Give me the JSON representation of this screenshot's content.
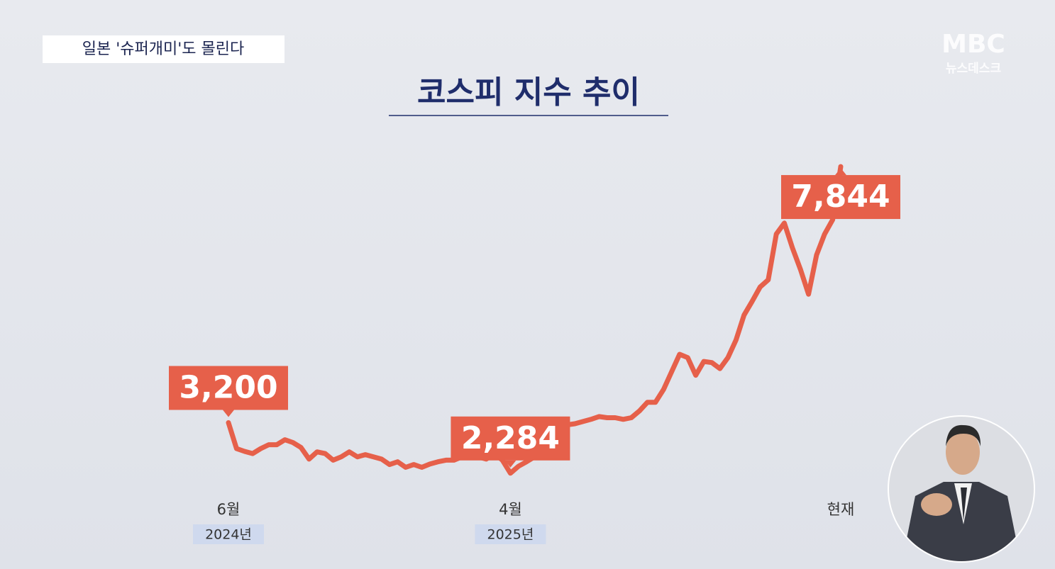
{
  "headline": "일본 '슈퍼개미'도 몰린다",
  "logo": {
    "brand": "MBC",
    "program": "뉴스데스크"
  },
  "chart_data": {
    "type": "line",
    "title": "코스피 지수 추이",
    "categories": [
      "6월",
      null,
      null,
      null,
      null,
      null,
      null,
      null,
      null,
      null,
      null,
      null,
      null,
      null,
      null,
      null,
      null,
      null,
      null,
      null,
      null,
      null,
      null,
      null,
      null,
      null,
      null,
      null,
      null,
      null,
      null,
      null,
      null,
      null,
      null,
      "4월",
      null,
      null,
      null,
      null,
      null,
      null,
      null,
      null,
      null,
      null,
      null,
      null,
      null,
      null,
      null,
      null,
      null,
      null,
      null,
      null,
      null,
      null,
      null,
      null,
      null,
      null,
      null,
      null,
      null,
      null,
      null,
      null,
      null,
      null,
      null,
      null,
      null,
      null,
      null,
      null,
      "현재"
    ],
    "category_years": [
      "2024년",
      null,
      null,
      null,
      null,
      null,
      null,
      null,
      null,
      null,
      null,
      null,
      null,
      null,
      null,
      null,
      null,
      null,
      null,
      null,
      null,
      null,
      null,
      null,
      null,
      null,
      null,
      null,
      null,
      null,
      null,
      null,
      null,
      null,
      null,
      "2025년",
      null,
      null,
      null,
      null,
      null,
      null,
      null,
      null,
      null,
      null,
      null,
      null,
      null,
      null,
      null,
      null,
      null,
      null,
      null,
      null,
      null,
      null,
      null,
      null,
      null,
      null,
      null,
      null,
      null,
      null,
      null,
      null,
      null,
      null,
      null,
      null,
      null,
      null,
      null,
      null,
      null
    ],
    "series": [
      {
        "name": "코스피",
        "color": "#e6604a",
        "values": [
          3200,
          2730,
          2680,
          2640,
          2730,
          2800,
          2800,
          2890,
          2840,
          2750,
          2540,
          2670,
          2640,
          2520,
          2580,
          2670,
          2580,
          2620,
          2580,
          2540,
          2440,
          2490,
          2390,
          2440,
          2390,
          2450,
          2490,
          2520,
          2520,
          2580,
          2670,
          2580,
          2540,
          2640,
          2520,
          2284,
          2410,
          2490,
          2580,
          2640,
          2700,
          2840,
          3160,
          3180,
          3220,
          3260,
          3310,
          3290,
          3290,
          3260,
          3290,
          3410,
          3570,
          3570,
          3800,
          4120,
          4440,
          4380,
          4060,
          4310,
          4290,
          4180,
          4380,
          4700,
          5150,
          5400,
          5660,
          5790,
          6620,
          6820,
          6370,
          5980,
          5530,
          6240,
          6620,
          6880,
          7844
        ],
        "value_labels": [
          "3,200",
          null,
          null,
          null,
          null,
          null,
          null,
          null,
          null,
          null,
          null,
          null,
          null,
          null,
          null,
          null,
          null,
          null,
          null,
          null,
          null,
          null,
          null,
          null,
          null,
          null,
          null,
          null,
          null,
          null,
          null,
          null,
          null,
          null,
          null,
          "2,284",
          null,
          null,
          null,
          null,
          null,
          null,
          null,
          null,
          null,
          null,
          null,
          null,
          null,
          null,
          null,
          null,
          null,
          null,
          null,
          null,
          null,
          null,
          null,
          null,
          null,
          null,
          null,
          null,
          null,
          null,
          null,
          null,
          null,
          null,
          null,
          null,
          null,
          null,
          null,
          null,
          "7,844"
        ]
      }
    ],
    "ylim": [
      1870,
      8680
    ]
  }
}
